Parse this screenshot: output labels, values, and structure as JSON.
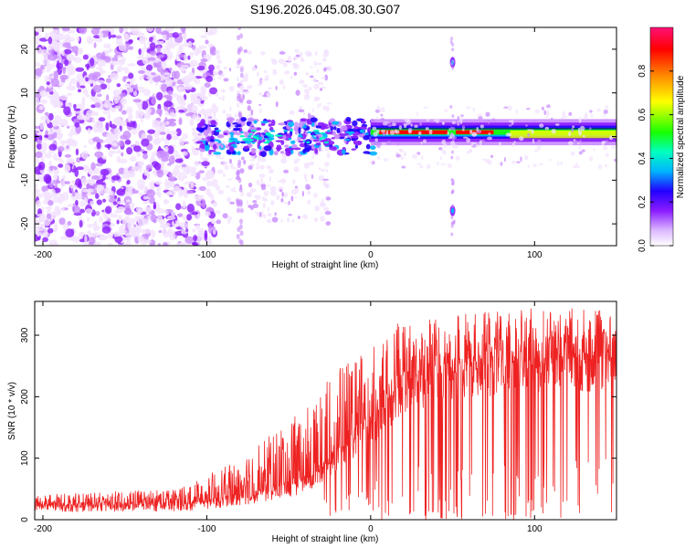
{
  "title": "S196.2026.045.08.30.G07",
  "chart_data": [
    {
      "type": "heatmap",
      "title": "S196.2026.045.08.30.G07",
      "xlabel": "Height of straight line (km)",
      "ylabel": "Frequency (Hz)",
      "xlim": [
        -205,
        150
      ],
      "ylim": [
        -25,
        25
      ],
      "xticks": [
        -200,
        -100,
        0,
        100
      ],
      "yticks": [
        -20,
        -10,
        0,
        10,
        20
      ],
      "colorbar": {
        "label": "Normalized spectral amplitude",
        "range": [
          0.0,
          1.0
        ],
        "ticks": [
          "0.0",
          "0.2",
          "0.4",
          "0.6",
          "0.8"
        ],
        "colors": [
          "#f2e2ff",
          "#c98cff",
          "#8b1cff",
          "#2200ff",
          "#00b4ff",
          "#00ffc0",
          "#19ff00",
          "#ffff00",
          "#ff8800",
          "#ff0000",
          "#ff1177"
        ]
      },
      "features": {
        "main_line_freq_hz": 1,
        "tone_height_km": 50,
        "tone_freqs_hz": [
          17,
          -17
        ]
      }
    },
    {
      "type": "line",
      "xlabel": "Height of straight line (km)",
      "ylabel": "SNR (10 * v/v)",
      "xlim": [
        -205,
        150
      ],
      "ylim": [
        0,
        355
      ],
      "xticks": [
        -200,
        -100,
        0,
        100
      ],
      "yticks": [
        0,
        100,
        200,
        300
      ],
      "series": [
        {
          "name": "SNR",
          "color": "#ee2222",
          "baseline": [
            [
              -205,
              20
            ],
            [
              -110,
              22
            ],
            [
              -75,
              35
            ],
            [
              -40,
              55
            ],
            [
              -20,
              100
            ],
            [
              0,
              150
            ],
            [
              20,
              215
            ],
            [
              60,
              245
            ],
            [
              100,
              255
            ],
            [
              150,
              258
            ]
          ],
          "peaks": [
            [
              -205,
              40
            ],
            [
              -120,
              50
            ],
            [
              -85,
              90
            ],
            [
              -60,
              140
            ],
            [
              -35,
              190
            ],
            [
              -20,
              265
            ],
            [
              10,
              320
            ],
            [
              60,
              335
            ],
            [
              100,
              345
            ],
            [
              150,
              345
            ]
          ],
          "dropouts_km": [
            [
              30,
              95
            ]
          ]
        }
      ]
    }
  ]
}
